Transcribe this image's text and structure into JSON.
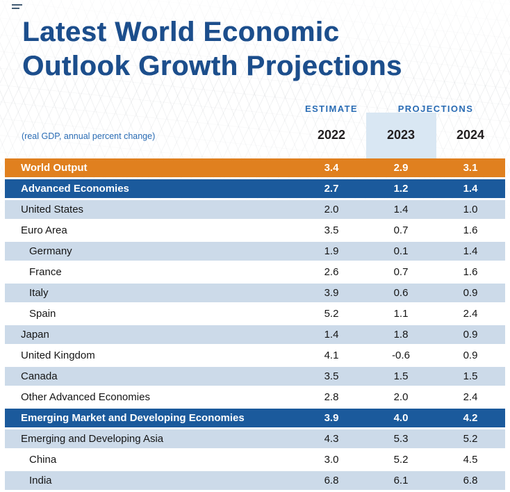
{
  "title": {
    "line1": "Latest World Economic",
    "line2": "Outlook Growth Projections"
  },
  "subtitle": "(real GDP, annual percent change)",
  "column_headers": {
    "estimate": "ESTIMATE",
    "projections": "PROJECTIONS",
    "years": [
      "2022",
      "2023",
      "2024"
    ]
  },
  "colors": {
    "title_blue": "#1c4e8c",
    "header_label_blue": "#2a6cb4",
    "world_output_orange": "#e0801f",
    "group_row_blue": "#1b5a9c",
    "alt_row_light_blue": "#ccdae9",
    "year_band_highlight": "#d9e7f3",
    "year_text": "#231f20"
  },
  "chart_data": {
    "type": "table",
    "title": "Latest World Economic Outlook Growth Projections",
    "subtitle": "(real GDP, annual percent change)",
    "column_groups": [
      {
        "label": "ESTIMATE",
        "columns": [
          "2022"
        ]
      },
      {
        "label": "PROJECTIONS",
        "columns": [
          "2023",
          "2024"
        ]
      }
    ],
    "columns": [
      "2022",
      "2023",
      "2024"
    ],
    "rows": [
      {
        "label": "World Output",
        "style": "orange",
        "indent": 0,
        "values": [
          "3.4",
          "2.9",
          "3.1"
        ]
      },
      {
        "label": "Advanced Economies",
        "style": "blue",
        "indent": 0,
        "values": [
          "2.7",
          "1.2",
          "1.4"
        ]
      },
      {
        "label": "United States",
        "style": "light",
        "indent": 0,
        "values": [
          "2.0",
          "1.4",
          "1.0"
        ]
      },
      {
        "label": "Euro Area",
        "style": "white",
        "indent": 0,
        "values": [
          "3.5",
          "0.7",
          "1.6"
        ]
      },
      {
        "label": "Germany",
        "style": "light",
        "indent": 1,
        "values": [
          "1.9",
          "0.1",
          "1.4"
        ]
      },
      {
        "label": "France",
        "style": "white",
        "indent": 1,
        "values": [
          "2.6",
          "0.7",
          "1.6"
        ]
      },
      {
        "label": "Italy",
        "style": "light",
        "indent": 1,
        "values": [
          "3.9",
          "0.6",
          "0.9"
        ]
      },
      {
        "label": "Spain",
        "style": "white",
        "indent": 1,
        "values": [
          "5.2",
          "1.1",
          "2.4"
        ]
      },
      {
        "label": "Japan",
        "style": "light",
        "indent": 0,
        "values": [
          "1.4",
          "1.8",
          "0.9"
        ]
      },
      {
        "label": "United Kingdom",
        "style": "white",
        "indent": 0,
        "values": [
          "4.1",
          "-0.6",
          "0.9"
        ]
      },
      {
        "label": "Canada",
        "style": "light",
        "indent": 0,
        "values": [
          "3.5",
          "1.5",
          "1.5"
        ]
      },
      {
        "label": "Other Advanced Economies",
        "style": "white",
        "indent": 0,
        "values": [
          "2.8",
          "2.0",
          "2.4"
        ]
      },
      {
        "label": "Emerging Market and Developing Economies",
        "style": "blue",
        "indent": 0,
        "values": [
          "3.9",
          "4.0",
          "4.2"
        ]
      },
      {
        "label": "Emerging and Developing Asia",
        "style": "light",
        "indent": 0,
        "values": [
          "4.3",
          "5.3",
          "5.2"
        ]
      },
      {
        "label": "China",
        "style": "white",
        "indent": 1,
        "values": [
          "3.0",
          "5.2",
          "4.5"
        ]
      },
      {
        "label": "India",
        "style": "light",
        "indent": 1,
        "values": [
          "6.8",
          "6.1",
          "6.8"
        ]
      }
    ]
  }
}
